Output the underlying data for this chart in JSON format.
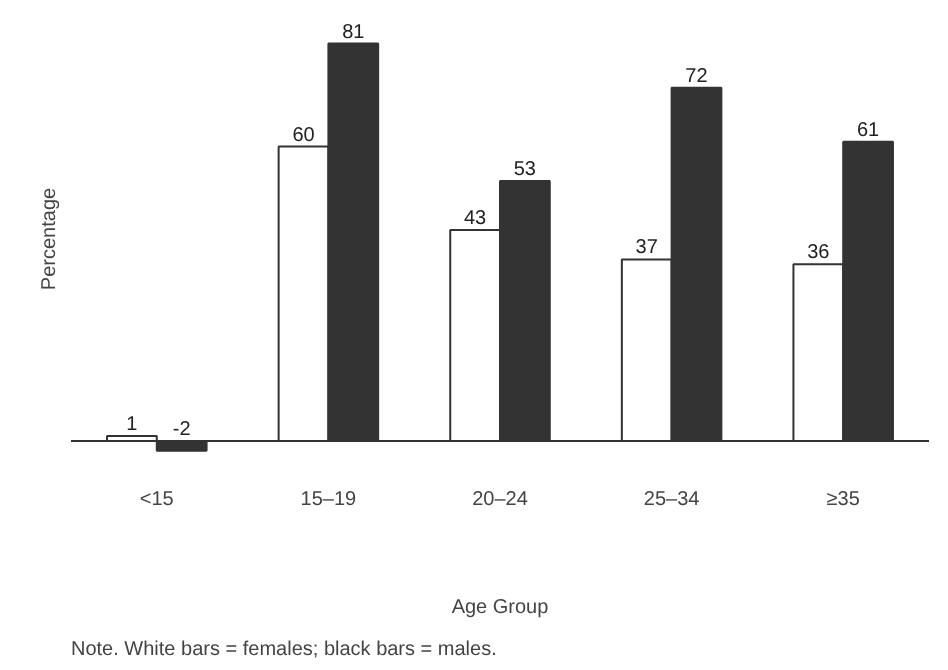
{
  "chart_data": {
    "type": "bar",
    "xlabel": "Age Group",
    "ylabel": "Percentage",
    "categories": [
      "<15",
      "15–19",
      "20–24",
      "25–34",
      "≥35"
    ],
    "series": [
      {
        "color": "#ffffff",
        "values": [
          1,
          60,
          43,
          37,
          36
        ]
      },
      {
        "color": "#333333",
        "values": [
          -2,
          81,
          53,
          72,
          61
        ]
      }
    ],
    "data_labels": true,
    "tick_labels": "x",
    "grid": false,
    "annotations": [
      "Note. White bars = females; black bars = males."
    ]
  }
}
